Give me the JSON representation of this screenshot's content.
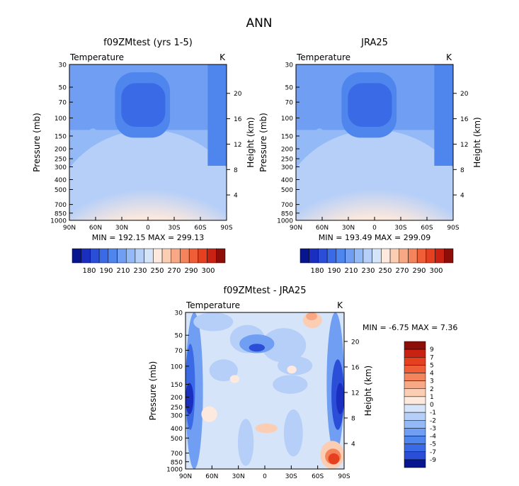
{
  "title": "ANN",
  "chart_data": [
    {
      "type": "heatmap",
      "title": "f09ZMtest (yrs 1-5)",
      "variable_label": "Temperature",
      "units_label": "K",
      "ylabel": "Pressure (mb)",
      "ylabel_right": "Height (km)",
      "x_ticks": [
        "90N",
        "60N",
        "30N",
        "0",
        "30S",
        "60S",
        "90S"
      ],
      "y_ticks": [
        "30",
        "50",
        "70",
        "100",
        "150",
        "200",
        "250",
        "300",
        "400",
        "500",
        "700",
        "850",
        "1000"
      ],
      "height_ticks": [
        "20",
        "16",
        "12",
        "8",
        "4"
      ],
      "stats_text": "MIN = 192.15   MAX = 299.13",
      "min": 192.15,
      "max": 299.13,
      "colorbar_labels": [
        "180",
        "190",
        "210",
        "230",
        "250",
        "270",
        "290",
        "300"
      ],
      "colorbar_colors": [
        "#07158f",
        "#1a2fbf",
        "#2a4ed8",
        "#3a6ae6",
        "#4f86ee",
        "#6f9ef2",
        "#93baf6",
        "#b6cff8",
        "#d6e4f9",
        "#fde9dd",
        "#fbcdb2",
        "#f8a884",
        "#f4845c",
        "#ef5e36",
        "#e5401f",
        "#c92212",
        "#8d0d09"
      ]
    },
    {
      "type": "heatmap",
      "title": "JRA25",
      "variable_label": "Temperature",
      "units_label": "K",
      "ylabel": "Pressure (mb)",
      "ylabel_right": "Height (km)",
      "x_ticks": [
        "90N",
        "60N",
        "30N",
        "0",
        "30S",
        "60S",
        "90S"
      ],
      "y_ticks": [
        "30",
        "50",
        "70",
        "100",
        "150",
        "200",
        "250",
        "300",
        "400",
        "500",
        "700",
        "850",
        "1000"
      ],
      "height_ticks": [
        "20",
        "16",
        "12",
        "8",
        "4"
      ],
      "stats_text": "MIN = 193.49   MAX = 299.09",
      "min": 193.49,
      "max": 299.09,
      "colorbar_labels": [
        "180",
        "190",
        "210",
        "230",
        "250",
        "270",
        "290",
        "300"
      ]
    },
    {
      "type": "heatmap",
      "title": "f09ZMtest - JRA25",
      "variable_label": "Temperature",
      "units_label": "K",
      "ylabel": "Pressure (mb)",
      "ylabel_right": "Height (km)",
      "x_ticks": [
        "90N",
        "60N",
        "30N",
        "0",
        "30S",
        "60S",
        "90S"
      ],
      "y_ticks": [
        "30",
        "50",
        "70",
        "100",
        "150",
        "200",
        "250",
        "300",
        "400",
        "500",
        "700",
        "850",
        "1000"
      ],
      "height_ticks": [
        "20",
        "16",
        "12",
        "8",
        "4"
      ],
      "stats_text": "MIN =   -6.75   MAX =    7.36",
      "min": -6.75,
      "max": 7.36,
      "colorbar_labels": [
        "9",
        "7",
        "5",
        "4",
        "3",
        "2",
        "1",
        "0",
        "-1",
        "-2",
        "-3",
        "-4",
        "-5",
        "-7",
        "-9"
      ],
      "colorbar_colors": [
        "#8d0d09",
        "#c92212",
        "#e5401f",
        "#ef5e36",
        "#f4845c",
        "#f8a884",
        "#fbcdb2",
        "#fde9dd",
        "#d6e4f9",
        "#b6cff8",
        "#93baf6",
        "#6f9ef2",
        "#4f86ee",
        "#3a6ae6",
        "#2a4ed8",
        "#07158f"
      ]
    }
  ]
}
